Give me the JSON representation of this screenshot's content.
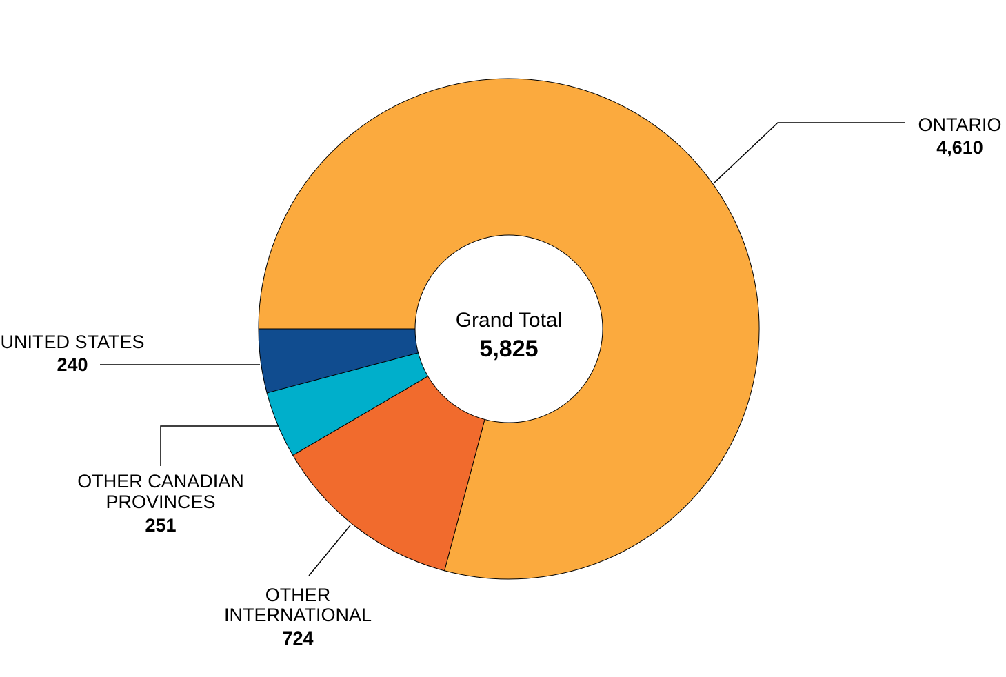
{
  "chart_data": {
    "type": "pie",
    "donut": true,
    "center": {
      "title": "Grand Total",
      "value": "5,825"
    },
    "slices": [
      {
        "label": "ONTARIO",
        "display_value": "4,610",
        "value": 4610,
        "color": "#FBAA3E"
      },
      {
        "label": "OTHER INTERNATIONAL",
        "display_value": "724",
        "value": 724,
        "color": "#F16B2D"
      },
      {
        "label": "OTHER CANADIAN PROVINCES",
        "display_value": "251",
        "value": 251,
        "color": "#00AFCB"
      },
      {
        "label": "UNITED STATES",
        "display_value": "240",
        "value": 240,
        "color": "#104C8F"
      }
    ]
  }
}
